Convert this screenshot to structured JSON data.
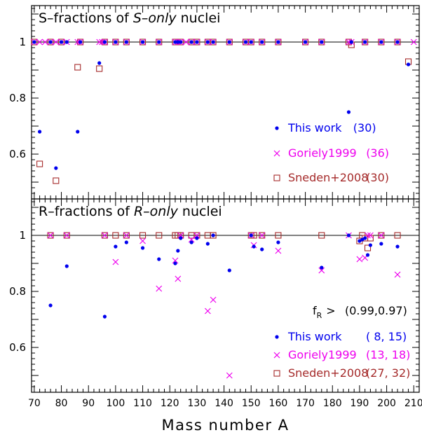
{
  "chart_data": [
    {
      "type": "scatter",
      "title": "S–fractions of S–only nuclei",
      "title_prefix": "S–fractions of ",
      "title_italic": "S–only",
      "title_suffix": " nuclei",
      "xlim": [
        69,
        212
      ],
      "ylim": [
        0.44,
        1.13
      ],
      "yticks": [
        0.6,
        0.8,
        1
      ],
      "ytick_labels": [
        "0.6",
        "0.8",
        "1"
      ],
      "reference_line": 1,
      "legend_placement": "lower-right",
      "series": [
        {
          "name": "This work",
          "count": "(30)",
          "marker": "dot",
          "color": "#0000ee",
          "x": [
            70,
            72,
            76,
            78,
            80,
            82,
            86,
            87,
            94,
            96,
            100,
            104,
            110,
            116,
            122,
            123,
            124,
            128,
            130,
            134,
            136,
            142,
            148,
            150,
            154,
            160,
            170,
            176,
            186,
            187,
            192,
            198,
            204,
            208
          ],
          "y": [
            1,
            0.68,
            1,
            0.55,
            1,
            1,
            0.68,
            1,
            0.925,
            1,
            1,
            1,
            1,
            1,
            1,
            1,
            1,
            1,
            1,
            1,
            1,
            1,
            1,
            1,
            1,
            1,
            1,
            1,
            0.75,
            1,
            1,
            1,
            1,
            0.92
          ]
        },
        {
          "name": "Goriely1999",
          "count": "(36)",
          "marker": "cross",
          "color": "#ee00ee",
          "x": [
            70,
            72,
            74,
            76,
            78,
            80,
            82,
            86,
            87,
            94,
            95,
            96,
            100,
            104,
            110,
            116,
            122,
            123,
            124,
            126,
            128,
            130,
            134,
            136,
            142,
            148,
            150,
            154,
            160,
            170,
            176,
            186,
            187,
            192,
            198,
            204,
            210
          ],
          "y": [
            1,
            1,
            1,
            1,
            1,
            1,
            1,
            1,
            1,
            1,
            1,
            1,
            1,
            1,
            1,
            1,
            1,
            1,
            1,
            1,
            1,
            1,
            1,
            1,
            1,
            1,
            1,
            1,
            1,
            1,
            1,
            1,
            1,
            1,
            1,
            1,
            1
          ]
        },
        {
          "name": "Sneden+2008",
          "count": "(30)",
          "marker": "square",
          "color": "#a52a2a",
          "x": [
            70,
            72,
            76,
            78,
            80,
            86,
            87,
            94,
            96,
            100,
            104,
            110,
            116,
            122,
            124,
            128,
            130,
            134,
            136,
            142,
            148,
            150,
            154,
            160,
            170,
            176,
            186,
            187,
            192,
            198,
            204,
            208
          ],
          "y": [
            1,
            0.565,
            1,
            0.505,
            1,
            0.91,
            1,
            0.905,
            1,
            1,
            1,
            1,
            1,
            1,
            1,
            1,
            1,
            1,
            1,
            1,
            1,
            1,
            1,
            1,
            1,
            1,
            1,
            0.99,
            1,
            1,
            1,
            0.93
          ]
        }
      ]
    },
    {
      "type": "scatter",
      "title": "R–fractions of R–only nuclei",
      "title_prefix": "R–fractions of ",
      "title_italic": "R–only",
      "title_suffix": " nuclei",
      "xlabel": "Mass number A",
      "xlim": [
        69,
        212
      ],
      "xticks": [
        70,
        80,
        90,
        100,
        110,
        120,
        130,
        140,
        150,
        160,
        170,
        180,
        190,
        200,
        210
      ],
      "ylim": [
        0.44,
        1.13
      ],
      "yticks": [
        0.6,
        0.8,
        1
      ],
      "ytick_labels": [
        "0.6",
        "0.8",
        "1"
      ],
      "reference_line": 1,
      "legend_placement": "lower-right",
      "legend_header_text": "f",
      "legend_header_sub": "R",
      "legend_header_gt": ">",
      "legend_header_values": "(0.99,0.97)",
      "series": [
        {
          "name": "This work",
          "count": "( 8, 15)",
          "marker": "dot",
          "color": "#0000ee",
          "x": [
            76,
            82,
            96,
            100,
            104,
            110,
            116,
            122,
            123,
            124,
            128,
            130,
            134,
            136,
            142,
            150,
            151,
            154,
            160,
            176,
            186,
            190,
            191,
            192,
            193,
            194,
            198,
            204
          ],
          "y": [
            0.75,
            0.89,
            0.71,
            0.96,
            0.975,
            0.955,
            0.915,
            0.9,
            0.945,
            0.99,
            0.975,
            0.99,
            0.97,
            1,
            0.875,
            1,
            0.96,
            0.95,
            0.975,
            0.885,
            1,
            0.98,
            0.985,
            0.99,
            0.93,
            0.965,
            0.97,
            0.96
          ]
        },
        {
          "name": "Goriely1999",
          "count": "(13, 18)",
          "marker": "cross",
          "color": "#ee00ee",
          "x": [
            76,
            82,
            96,
            100,
            104,
            110,
            116,
            122,
            123,
            124,
            128,
            130,
            134,
            136,
            142,
            150,
            151,
            154,
            160,
            176,
            186,
            190,
            192,
            193,
            194,
            198,
            204
          ],
          "y": [
            1,
            1,
            1,
            0.905,
            1,
            0.98,
            0.81,
            0.91,
            0.845,
            1,
            0.985,
            1,
            0.73,
            0.77,
            0.5,
            1,
            0.965,
            1,
            0.945,
            0.875,
            1,
            0.915,
            0.92,
            1,
            1,
            1,
            0.86
          ]
        },
        {
          "name": "Sneden+2008",
          "count": "(27, 32)",
          "marker": "square",
          "color": "#a52a2a",
          "x": [
            76,
            82,
            96,
            100,
            104,
            110,
            116,
            122,
            123,
            124,
            128,
            130,
            134,
            136,
            150,
            151,
            154,
            160,
            176,
            190,
            191,
            192,
            193,
            194,
            198,
            204
          ],
          "y": [
            1,
            1,
            1,
            1,
            1,
            1,
            1,
            1,
            1,
            1,
            1,
            1,
            1,
            1,
            1,
            1,
            1,
            1,
            1,
            0.98,
            1,
            0.99,
            0.955,
            0.99,
            1,
            1
          ]
        }
      ]
    }
  ]
}
